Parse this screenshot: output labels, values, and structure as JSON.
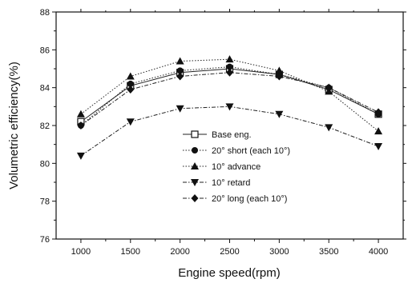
{
  "chart_data": {
    "type": "line",
    "title": "",
    "xlabel": "Engine speed(rpm)",
    "ylabel": "Volumetric efficiency(%)",
    "x": [
      1000,
      1500,
      2000,
      2500,
      3000,
      3500,
      4000
    ],
    "xlim": [
      750,
      4250
    ],
    "ylim": [
      76,
      88
    ],
    "xticks": [
      "1000",
      "1500",
      "2000",
      "2500",
      "3000",
      "3500",
      "4000"
    ],
    "yticks": [
      "76",
      "78",
      "80",
      "82",
      "84",
      "86",
      "88"
    ],
    "grid": false,
    "legend_position": "center",
    "series": [
      {
        "name": "Base eng.",
        "marker": "square-open",
        "dash": "solid",
        "values": [
          82.2,
          84.1,
          84.8,
          85.0,
          84.7,
          83.9,
          82.6
        ]
      },
      {
        "name": "20° short (each 10°)",
        "marker": "circle",
        "dash": "dotted",
        "values": [
          82.0,
          84.2,
          84.9,
          85.1,
          84.7,
          84.0,
          82.6
        ]
      },
      {
        "name": "10° advance",
        "marker": "triangle-up",
        "dash": "dotted",
        "values": [
          82.6,
          84.6,
          85.4,
          85.5,
          84.9,
          83.8,
          81.7
        ]
      },
      {
        "name": "10° retard",
        "marker": "triangle-down",
        "dash": "dashdot",
        "values": [
          80.4,
          82.2,
          82.9,
          83.0,
          82.6,
          81.9,
          80.9
        ]
      },
      {
        "name": "20° long (each 10°)",
        "marker": "diamond",
        "dash": "dashdot",
        "values": [
          82.0,
          83.9,
          84.6,
          84.8,
          84.6,
          84.0,
          82.7
        ]
      }
    ]
  }
}
